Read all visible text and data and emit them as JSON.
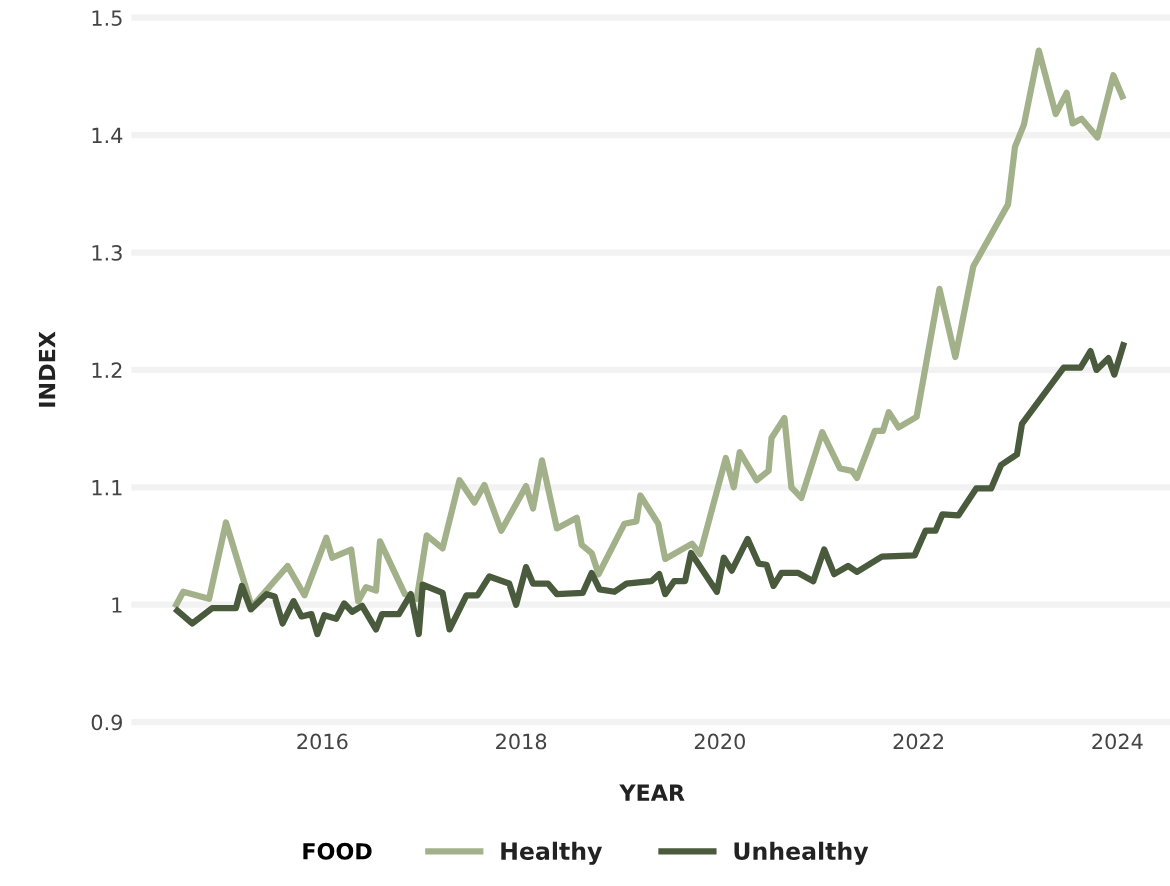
{
  "chart_data": {
    "type": "line",
    "xlabel": "YEAR",
    "ylabel": "INDEX",
    "legend_title": "FOOD",
    "legend": "bottom",
    "grid": "y",
    "marker": "none",
    "line_style": "solid",
    "xlim": [
      2014.11,
      2024.53
    ],
    "xticks": [
      2016,
      2018,
      2020,
      2022,
      2024
    ],
    "ylim": [
      0.9,
      1.5
    ],
    "yticks": [
      0.9,
      1,
      1.1,
      1.2,
      1.3,
      1.4,
      1.5
    ],
    "series": [
      {
        "name": "Healthy",
        "color": "#a3b18a",
        "x": [
          2014.53,
          2014.6,
          2014.86,
          2015.03,
          2015.29,
          2015.65,
          2015.82,
          2016.04,
          2016.1,
          2016.29,
          2016.36,
          2016.44,
          2016.54,
          2016.58,
          2016.83,
          2016.95,
          2017.05,
          2017.21,
          2017.38,
          2017.53,
          2017.63,
          2017.8,
          2018.05,
          2018.12,
          2018.21,
          2018.36,
          2018.56,
          2018.61,
          2018.71,
          2018.78,
          2019.04,
          2019.16,
          2019.2,
          2019.38,
          2019.45,
          2019.72,
          2019.8,
          2020.06,
          2020.14,
          2020.2,
          2020.37,
          2020.49,
          2020.52,
          2020.65,
          2020.72,
          2020.82,
          2021.03,
          2021.21,
          2021.33,
          2021.38,
          2021.56,
          2021.64,
          2021.7,
          2021.8,
          2021.98,
          2022.21,
          2022.37,
          2022.55,
          2022.9,
          2022.97,
          2023.06,
          2023.21,
          2023.38,
          2023.49,
          2023.55,
          2023.64,
          2023.8,
          2023.96,
          2024.05
        ],
        "values": [
          1.0,
          1.011,
          1.005,
          1.07,
          0.998,
          1.033,
          1.008,
          1.057,
          1.04,
          1.047,
          1.003,
          1.015,
          1.012,
          1.054,
          1.009,
          1.005,
          1.059,
          1.048,
          1.106,
          1.087,
          1.102,
          1.063,
          1.101,
          1.082,
          1.123,
          1.065,
          1.074,
          1.051,
          1.044,
          1.026,
          1.069,
          1.071,
          1.093,
          1.069,
          1.039,
          1.052,
          1.043,
          1.125,
          1.1,
          1.13,
          1.106,
          1.114,
          1.142,
          1.159,
          1.1,
          1.091,
          1.147,
          1.116,
          1.114,
          1.108,
          1.148,
          1.148,
          1.164,
          1.151,
          1.16,
          1.269,
          1.211,
          1.288,
          1.341,
          1.39,
          1.409,
          1.472,
          1.418,
          1.436,
          1.41,
          1.414,
          1.398,
          1.451,
          1.433
        ]
      },
      {
        "name": "Unhealthy",
        "color": "#4a5a3c",
        "x": [
          2014.54,
          2014.69,
          2014.89,
          2015.13,
          2015.19,
          2015.28,
          2015.44,
          2015.52,
          2015.6,
          2015.71,
          2015.79,
          2015.89,
          2015.95,
          2016.02,
          2016.14,
          2016.22,
          2016.3,
          2016.4,
          2016.54,
          2016.6,
          2016.77,
          2016.89,
          2016.97,
          2017.01,
          2017.21,
          2017.28,
          2017.45,
          2017.56,
          2017.68,
          2017.88,
          2017.95,
          2018.05,
          2018.12,
          2018.27,
          2018.36,
          2018.62,
          2018.71,
          2018.79,
          2018.94,
          2019.06,
          2019.31,
          2019.39,
          2019.45,
          2019.54,
          2019.65,
          2019.71,
          2019.97,
          2020.04,
          2020.12,
          2020.28,
          2020.39,
          2020.47,
          2020.54,
          2020.62,
          2020.79,
          2020.94,
          2021.05,
          2021.15,
          2021.29,
          2021.38,
          2021.63,
          2021.96,
          2022.07,
          2022.17,
          2022.24,
          2022.4,
          2022.58,
          2022.73,
          2022.83,
          2022.99,
          2023.04,
          2023.46,
          2023.63,
          2023.73,
          2023.79,
          2023.91,
          2023.97,
          2024.06
        ],
        "values": [
          0.995,
          0.984,
          0.997,
          0.997,
          1.016,
          0.996,
          1.009,
          1.007,
          0.984,
          1.003,
          0.99,
          0.992,
          0.975,
          0.991,
          0.988,
          1.001,
          0.994,
          0.999,
          0.979,
          0.992,
          0.992,
          1.009,
          0.975,
          1.017,
          1.01,
          0.979,
          1.008,
          1.008,
          1.024,
          1.018,
          1.0,
          1.032,
          1.018,
          1.018,
          1.009,
          1.01,
          1.027,
          1.013,
          1.011,
          1.018,
          1.02,
          1.026,
          1.009,
          1.02,
          1.02,
          1.044,
          1.011,
          1.04,
          1.029,
          1.056,
          1.035,
          1.034,
          1.016,
          1.027,
          1.027,
          1.02,
          1.047,
          1.026,
          1.033,
          1.028,
          1.041,
          1.042,
          1.063,
          1.063,
          1.077,
          1.076,
          1.099,
          1.099,
          1.119,
          1.128,
          1.154,
          1.202,
          1.202,
          1.216,
          1.2,
          1.21,
          1.196,
          1.221
        ]
      }
    ]
  }
}
